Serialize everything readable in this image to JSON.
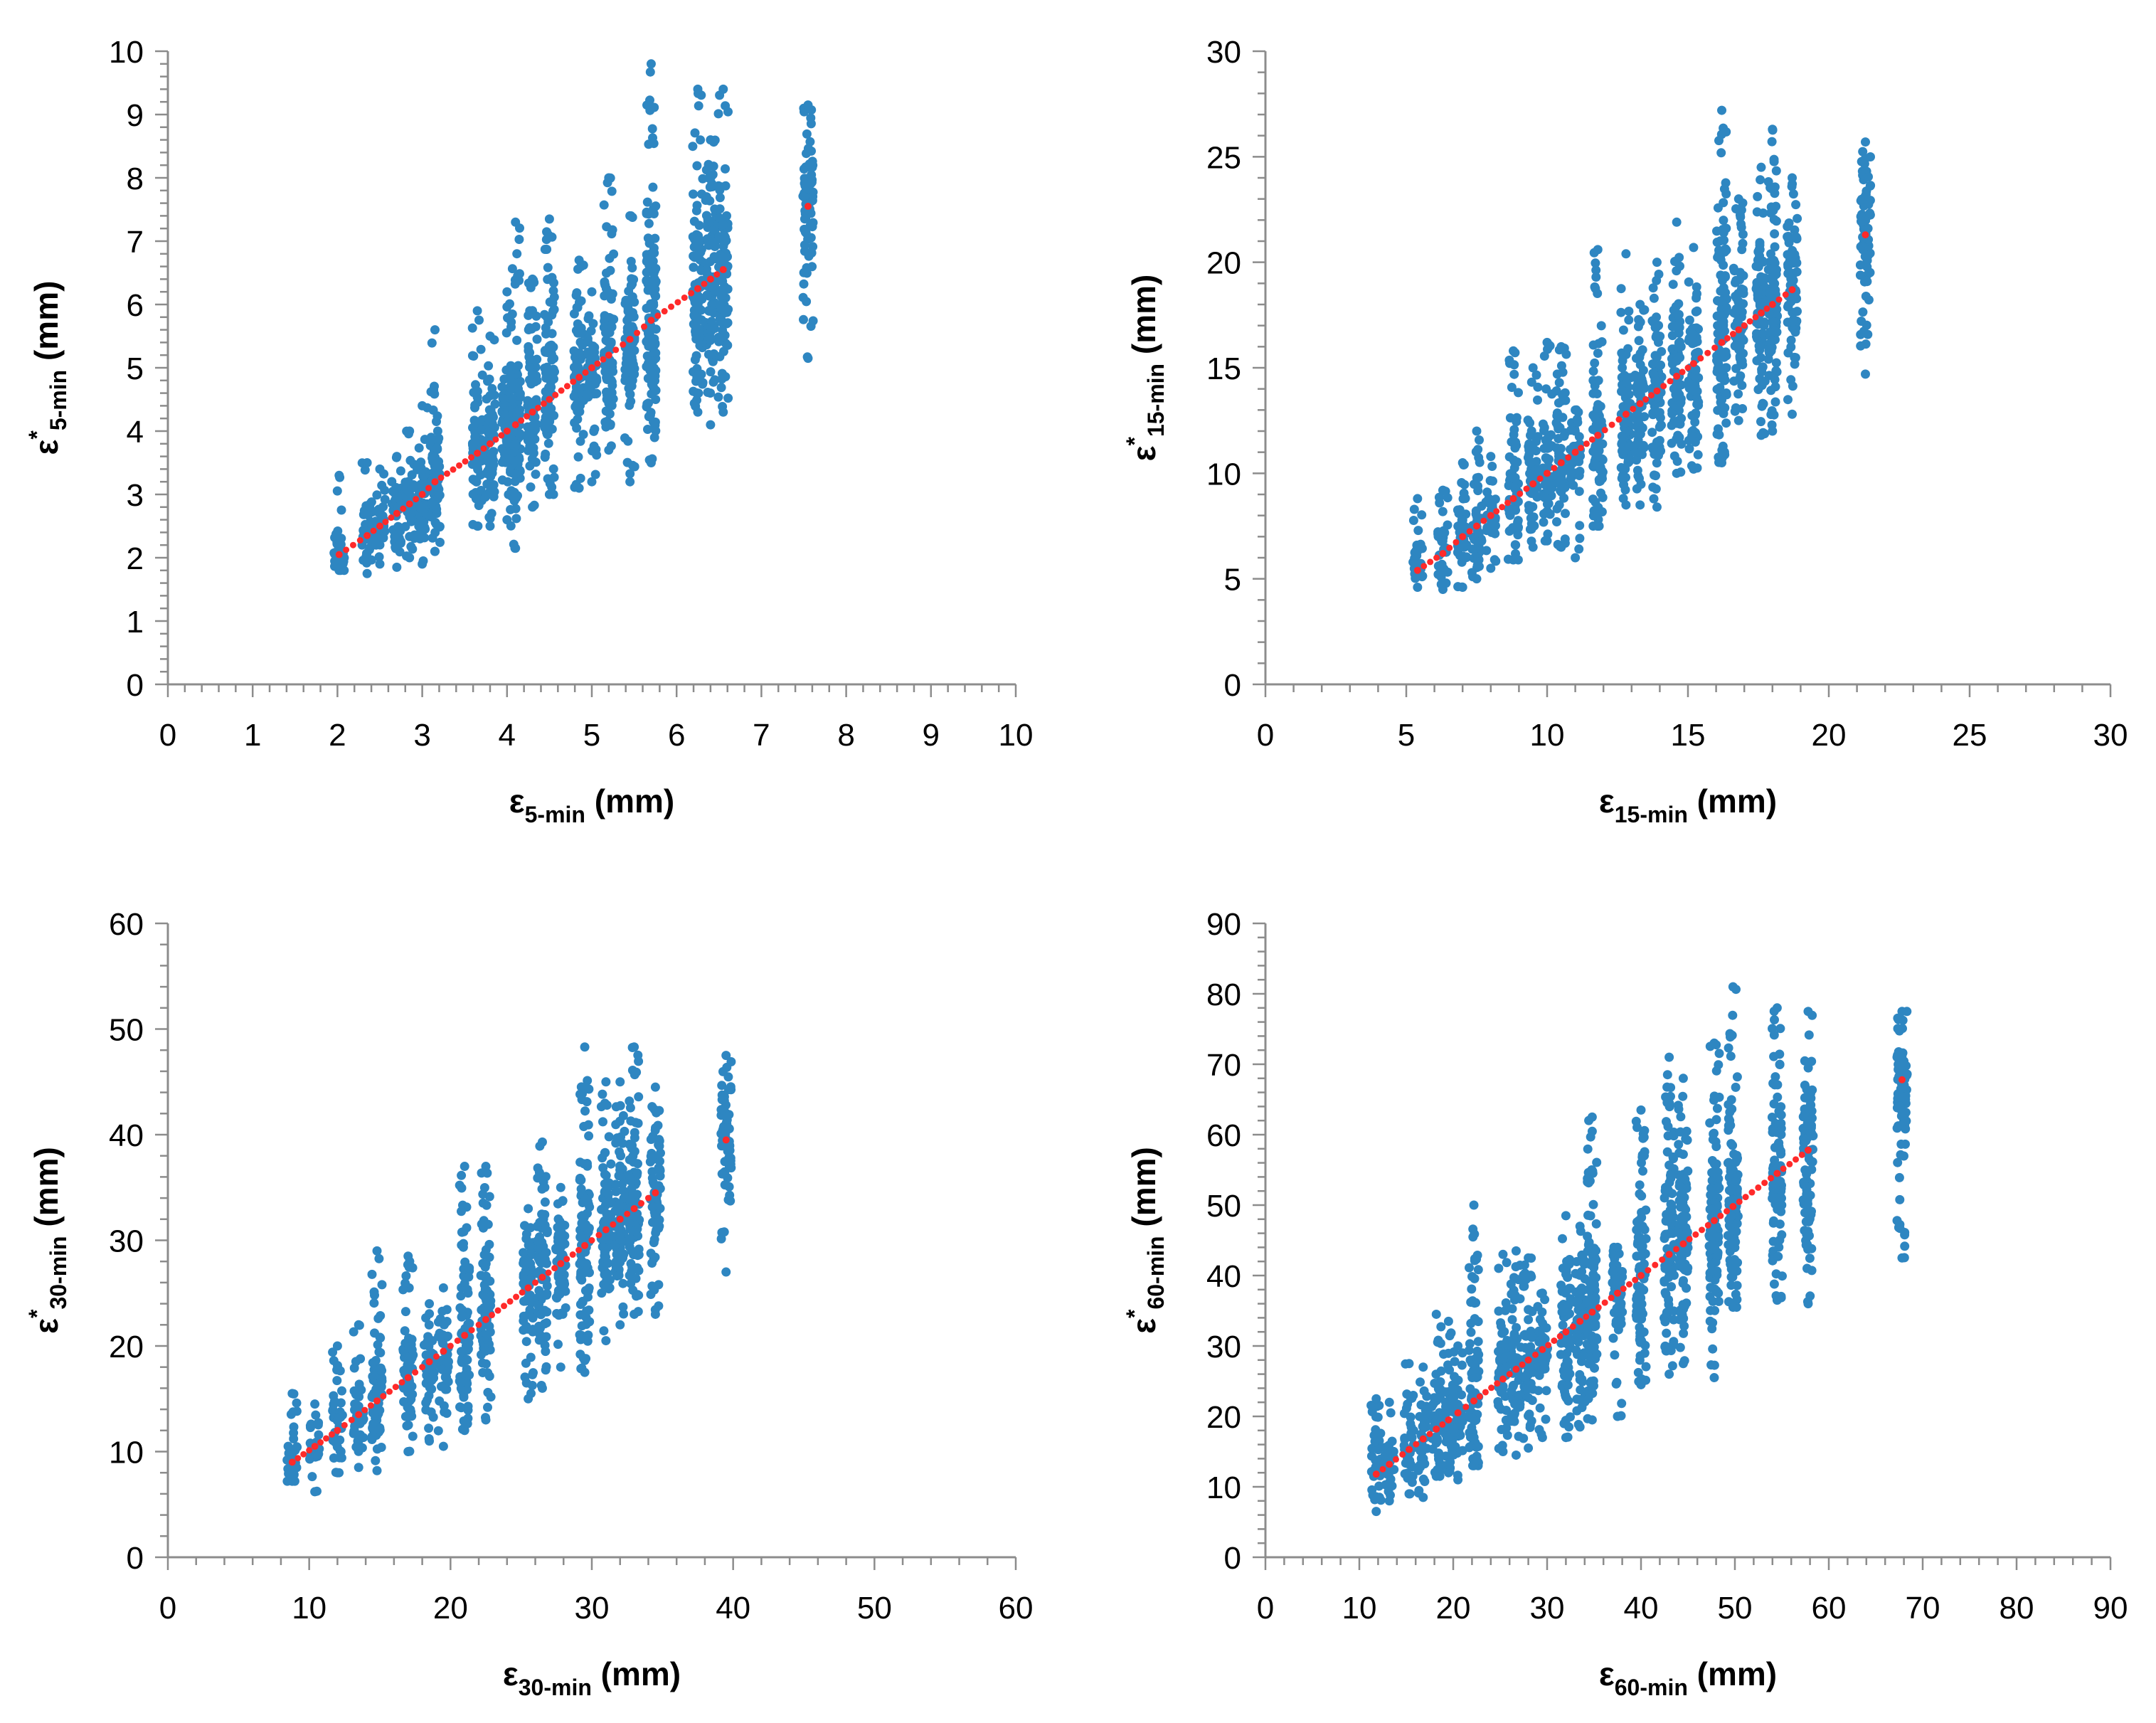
{
  "colors": {
    "observed": "#2e86c1",
    "fitted": "#ff2a2a",
    "axis": "#8c8c8c",
    "text": "#000000"
  },
  "chart_data": [
    {
      "type": "scatter",
      "id": "5min",
      "xlabel": {
        "main": "ε",
        "sub": "5-min",
        "unit": " (mm)"
      },
      "ylabel": {
        "main": "ε",
        "sup": "*",
        "sub": "5-min",
        "unit": " (mm)"
      },
      "xlim": [
        0,
        10
      ],
      "ylim": [
        0,
        10
      ],
      "major": 1,
      "minor": 0.2,
      "xticks": [
        "0",
        "1",
        "2",
        "3",
        "4",
        "5",
        "6",
        "7",
        "8",
        "9",
        "10"
      ],
      "yticks": [
        "0",
        "1",
        "2",
        "3",
        "4",
        "5",
        "6",
        "7",
        "8",
        "9",
        "10"
      ],
      "groups": [
        {
          "x": 2.02,
          "min": 1.8,
          "max": 3.3,
          "fit": 2.05
        },
        {
          "x": 2.35,
          "min": 1.75,
          "max": 3.5,
          "fit": 2.35
        },
        {
          "x": 2.5,
          "min": 1.9,
          "max": 3.4,
          "fit": 2.5
        },
        {
          "x": 2.7,
          "min": 1.85,
          "max": 3.6,
          "fit": 2.7
        },
        {
          "x": 2.85,
          "min": 2.0,
          "max": 4.0,
          "fit": 2.85
        },
        {
          "x": 3.0,
          "min": 1.9,
          "max": 4.4,
          "fit": 3.0
        },
        {
          "x": 3.15,
          "min": 2.1,
          "max": 5.6,
          "fit": 3.2
        },
        {
          "x": 3.65,
          "min": 2.5,
          "max": 5.9,
          "fit": 3.65
        },
        {
          "x": 3.8,
          "min": 2.5,
          "max": 5.5,
          "fit": 3.8
        },
        {
          "x": 4.0,
          "min": 2.6,
          "max": 6.2,
          "fit": 4.0
        },
        {
          "x": 4.1,
          "min": 2.15,
          "max": 7.3,
          "fit": 4.1
        },
        {
          "x": 4.3,
          "min": 2.8,
          "max": 6.4,
          "fit": 4.3
        },
        {
          "x": 4.5,
          "min": 3.0,
          "max": 7.35,
          "fit": 4.5
        },
        {
          "x": 4.85,
          "min": 3.1,
          "max": 6.7,
          "fit": 4.85
        },
        {
          "x": 5.0,
          "min": 3.2,
          "max": 6.2,
          "fit": 5.0
        },
        {
          "x": 5.2,
          "min": 3.7,
          "max": 8.0,
          "fit": 5.2
        },
        {
          "x": 5.45,
          "min": 3.2,
          "max": 7.4,
          "fit": 5.45
        },
        {
          "x": 5.7,
          "min": 3.5,
          "max": 9.8,
          "fit": 5.75
        },
        {
          "x": 6.25,
          "min": 4.3,
          "max": 9.4,
          "fit": 6.25
        },
        {
          "x": 6.4,
          "min": 4.1,
          "max": 8.6,
          "fit": 6.4
        },
        {
          "x": 6.55,
          "min": 4.3,
          "max": 9.4,
          "fit": 6.55
        },
        {
          "x": 7.55,
          "min": 5.15,
          "max": 9.15,
          "fit": 7.55
        }
      ]
    },
    {
      "type": "scatter",
      "id": "15min",
      "xlabel": {
        "main": "ε",
        "sub": "15-min",
        "unit": " (mm)"
      },
      "ylabel": {
        "main": "ε",
        "sup": "*",
        "sub": "15-min",
        "unit": " (mm)"
      },
      "xlim": [
        0,
        30
      ],
      "ylim": [
        0,
        30
      ],
      "major": 5,
      "minor": 1,
      "xticks": [
        "0",
        "5",
        "10",
        "15",
        "20",
        "25",
        "30"
      ],
      "yticks": [
        "0",
        "5",
        "10",
        "15",
        "20",
        "25",
        "30"
      ],
      "groups": [
        {
          "x": 5.4,
          "min": 4.6,
          "max": 8.8,
          "fit": 5.4
        },
        {
          "x": 6.3,
          "min": 4.5,
          "max": 9.2,
          "fit": 6.2
        },
        {
          "x": 7.0,
          "min": 4.6,
          "max": 10.5,
          "fit": 7.0
        },
        {
          "x": 7.5,
          "min": 5.0,
          "max": 12.0,
          "fit": 7.5
        },
        {
          "x": 8.0,
          "min": 5.5,
          "max": 10.8,
          "fit": 8.0
        },
        {
          "x": 8.8,
          "min": 5.9,
          "max": 15.8,
          "fit": 8.8
        },
        {
          "x": 9.5,
          "min": 6.5,
          "max": 15.0,
          "fit": 9.5
        },
        {
          "x": 10.0,
          "min": 6.8,
          "max": 16.2,
          "fit": 10.0
        },
        {
          "x": 10.5,
          "min": 6.5,
          "max": 16.0,
          "fit": 10.5
        },
        {
          "x": 11.0,
          "min": 6.0,
          "max": 13.0,
          "fit": 11.0
        },
        {
          "x": 11.8,
          "min": 7.5,
          "max": 20.6,
          "fit": 11.8
        },
        {
          "x": 12.8,
          "min": 8.5,
          "max": 20.4,
          "fit": 12.8
        },
        {
          "x": 13.3,
          "min": 8.5,
          "max": 18.0,
          "fit": 13.3
        },
        {
          "x": 13.9,
          "min": 8.4,
          "max": 20.0,
          "fit": 13.9
        },
        {
          "x": 14.6,
          "min": 10.0,
          "max": 21.9,
          "fit": 14.6
        },
        {
          "x": 15.2,
          "min": 10.2,
          "max": 20.7,
          "fit": 15.2
        },
        {
          "x": 16.2,
          "min": 10.5,
          "max": 27.2,
          "fit": 16.2
        },
        {
          "x": 16.8,
          "min": 12.5,
          "max": 23.0,
          "fit": 16.8
        },
        {
          "x": 17.6,
          "min": 11.8,
          "max": 24.5,
          "fit": 17.6
        },
        {
          "x": 18.0,
          "min": 12.0,
          "max": 26.3,
          "fit": 18.0
        },
        {
          "x": 18.7,
          "min": 12.8,
          "max": 24.0,
          "fit": 18.7
        },
        {
          "x": 21.3,
          "min": 14.7,
          "max": 25.7,
          "fit": 21.3
        }
      ]
    },
    {
      "type": "scatter",
      "id": "30min",
      "xlabel": {
        "main": "ε",
        "sub": "30-min",
        "unit": " (mm)"
      },
      "ylabel": {
        "main": "ε",
        "sup": "*",
        "sub": "30-min",
        "unit": " (mm)"
      },
      "xlim": [
        0,
        60
      ],
      "ylim": [
        0,
        60
      ],
      "major": 10,
      "minor": 2,
      "xticks": [
        "0",
        "10",
        "20",
        "30",
        "40",
        "50",
        "60"
      ],
      "yticks": [
        "0",
        "10",
        "20",
        "30",
        "40",
        "50",
        "60"
      ],
      "groups": [
        {
          "x": 8.8,
          "min": 7.2,
          "max": 15.5,
          "fit": 9.0
        },
        {
          "x": 10.4,
          "min": 6.2,
          "max": 14.5,
          "fit": 10.5
        },
        {
          "x": 12.0,
          "min": 8.0,
          "max": 20.0,
          "fit": 12.0
        },
        {
          "x": 13.5,
          "min": 8.5,
          "max": 22.0,
          "fit": 13.5
        },
        {
          "x": 14.8,
          "min": 8.2,
          "max": 29.0,
          "fit": 14.8
        },
        {
          "x": 17.0,
          "min": 10.0,
          "max": 28.5,
          "fit": 17.0
        },
        {
          "x": 18.5,
          "min": 11.0,
          "max": 24.0,
          "fit": 18.5
        },
        {
          "x": 19.5,
          "min": 10.5,
          "max": 25.5,
          "fit": 19.5
        },
        {
          "x": 21.0,
          "min": 12.0,
          "max": 37.0,
          "fit": 21.0
        },
        {
          "x": 22.5,
          "min": 13.0,
          "max": 37.0,
          "fit": 22.5
        },
        {
          "x": 25.5,
          "min": 15.0,
          "max": 33.0,
          "fit": 25.5
        },
        {
          "x": 26.5,
          "min": 16.0,
          "max": 39.3,
          "fit": 26.5
        },
        {
          "x": 27.8,
          "min": 18.0,
          "max": 35.0,
          "fit": 27.8
        },
        {
          "x": 29.5,
          "min": 17.5,
          "max": 48.3,
          "fit": 29.5
        },
        {
          "x": 31.0,
          "min": 20.5,
          "max": 45.0,
          "fit": 31.0
        },
        {
          "x": 32.0,
          "min": 22.0,
          "max": 45.0,
          "fit": 32.0
        },
        {
          "x": 33.0,
          "min": 23.0,
          "max": 48.3,
          "fit": 33.0
        },
        {
          "x": 34.5,
          "min": 23.0,
          "max": 44.5,
          "fit": 34.5
        },
        {
          "x": 39.5,
          "min": 27.0,
          "max": 47.5,
          "fit": 39.5
        }
      ]
    },
    {
      "type": "scatter",
      "id": "60min",
      "xlabel": {
        "main": "ε",
        "sub": "60-min",
        "unit": " (mm)"
      },
      "ylabel": {
        "main": "ε",
        "sup": "*",
        "sub": "60-min",
        "unit": " (mm)"
      },
      "xlim": [
        0,
        90
      ],
      "ylim": [
        0,
        90
      ],
      "major": 10,
      "minor": 2,
      "xticks": [
        "0",
        "10",
        "20",
        "30",
        "40",
        "50",
        "60",
        "70",
        "80",
        "90"
      ],
      "yticks": [
        "0",
        "10",
        "20",
        "30",
        "40",
        "50",
        "60",
        "70",
        "80",
        "90"
      ],
      "groups": [
        {
          "x": 11.8,
          "min": 6.5,
          "max": 22.5,
          "fit": 11.8
        },
        {
          "x": 13.2,
          "min": 8.0,
          "max": 22.0,
          "fit": 13.2
        },
        {
          "x": 15.3,
          "min": 9.0,
          "max": 27.5,
          "fit": 15.3
        },
        {
          "x": 16.8,
          "min": 8.5,
          "max": 27.0,
          "fit": 16.8
        },
        {
          "x": 18.2,
          "min": 11.5,
          "max": 34.5,
          "fit": 18.2
        },
        {
          "x": 19.5,
          "min": 12.0,
          "max": 33.5,
          "fit": 19.5
        },
        {
          "x": 20.5,
          "min": 11.0,
          "max": 30.0,
          "fit": 20.5
        },
        {
          "x": 22.2,
          "min": 13.0,
          "max": 50.0,
          "fit": 22.2
        },
        {
          "x": 25.3,
          "min": 15.0,
          "max": 43.0,
          "fit": 25.3
        },
        {
          "x": 26.7,
          "min": 14.5,
          "max": 43.5,
          "fit": 26.7
        },
        {
          "x": 28.0,
          "min": 15.5,
          "max": 42.5,
          "fit": 28.0
        },
        {
          "x": 29.5,
          "min": 17.0,
          "max": 37.5,
          "fit": 29.5
        },
        {
          "x": 32.0,
          "min": 17.0,
          "max": 48.5,
          "fit": 32.0
        },
        {
          "x": 33.5,
          "min": 18.5,
          "max": 47.0,
          "fit": 33.5
        },
        {
          "x": 34.8,
          "min": 19.5,
          "max": 62.5,
          "fit": 34.8
        },
        {
          "x": 37.5,
          "min": 20.0,
          "max": 44.0,
          "fit": 37.5
        },
        {
          "x": 40.0,
          "min": 24.5,
          "max": 63.5,
          "fit": 40.0
        },
        {
          "x": 43.0,
          "min": 26.0,
          "max": 71.0,
          "fit": 43.0
        },
        {
          "x": 44.5,
          "min": 27.5,
          "max": 68.0,
          "fit": 44.5
        },
        {
          "x": 47.8,
          "min": 25.5,
          "max": 73.0,
          "fit": 47.8
        },
        {
          "x": 49.8,
          "min": 35.5,
          "max": 81.0,
          "fit": 49.8
        },
        {
          "x": 54.5,
          "min": 36.5,
          "max": 78.0,
          "fit": 54.5
        },
        {
          "x": 57.8,
          "min": 36.0,
          "max": 77.5,
          "fit": 57.8
        },
        {
          "x": 67.8,
          "min": 42.5,
          "max": 77.5,
          "fit": 67.8
        }
      ]
    }
  ]
}
